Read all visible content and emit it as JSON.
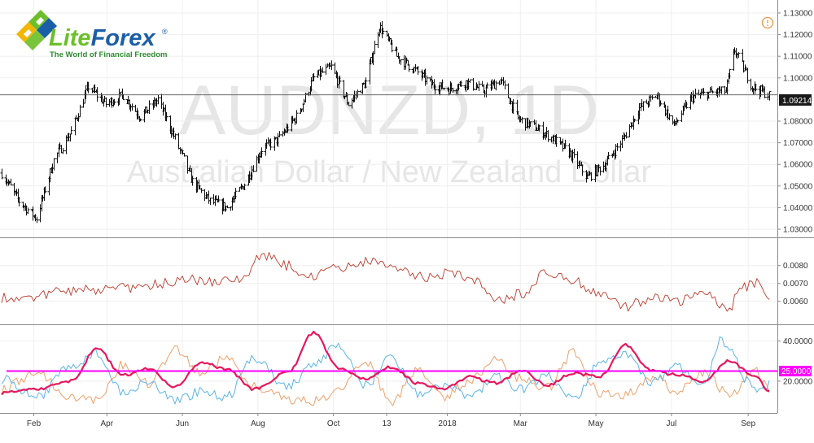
{
  "logo": {
    "word_a": "Lite",
    "word_b": "Forex",
    "registered": "®",
    "tagline": "The World of Financial Freedom",
    "colors": {
      "green": "#6cbf2a",
      "yellow": "#f2b705",
      "blue": "#1b5ea8",
      "tagline": "#2e8b32"
    }
  },
  "watermark": {
    "symbol": "AUDNZD, 1D",
    "description": "Australian Dollar / New Zealand Dollar"
  },
  "alert_icon": "exclamation-circle-icon",
  "chart_data": [
    {
      "type": "ohlc",
      "symbol": "AUDNZD",
      "timeframe": "1D",
      "ylim": [
        1.027,
        1.133
      ],
      "y_ticks": [
        "1.13000",
        "1.12000",
        "1.11000",
        "1.10000",
        "1.08000",
        "1.07000",
        "1.06000",
        "1.05000",
        "1.04000",
        "1.03000"
      ],
      "last_price": "1.09214",
      "x_ticks": [
        "Feb",
        "Apr",
        "Jun",
        "Aug",
        "Oct",
        "13",
        "2018",
        "Mar",
        "May",
        "Jul",
        "Sep"
      ],
      "close_path": [
        [
          "2017-01-06",
          1.056
        ],
        [
          "2017-01-20",
          1.043
        ],
        [
          "2017-02-03",
          1.035
        ],
        [
          "2017-02-17",
          1.062
        ],
        [
          "2017-03-03",
          1.075
        ],
        [
          "2017-03-17",
          1.096
        ],
        [
          "2017-03-31",
          1.088
        ],
        [
          "2017-04-14",
          1.092
        ],
        [
          "2017-04-28",
          1.082
        ],
        [
          "2017-05-12",
          1.09
        ],
        [
          "2017-05-26",
          1.072
        ],
        [
          "2017-06-09",
          1.052
        ],
        [
          "2017-06-23",
          1.043
        ],
        [
          "2017-07-07",
          1.04
        ],
        [
          "2017-07-21",
          1.051
        ],
        [
          "2017-08-04",
          1.067
        ],
        [
          "2017-08-18",
          1.072
        ],
        [
          "2017-09-01",
          1.082
        ],
        [
          "2017-09-15",
          1.1
        ],
        [
          "2017-09-29",
          1.105
        ],
        [
          "2017-10-13",
          1.088
        ],
        [
          "2017-10-27",
          1.098
        ],
        [
          "2017-11-07",
          1.124
        ],
        [
          "2017-11-21",
          1.11
        ],
        [
          "2017-12-05",
          1.104
        ],
        [
          "2017-12-19",
          1.097
        ],
        [
          "2018-01-02",
          1.095
        ],
        [
          "2018-01-16",
          1.098
        ],
        [
          "2018-01-30",
          1.094
        ],
        [
          "2018-02-13",
          1.099
        ],
        [
          "2018-02-27",
          1.081
        ],
        [
          "2018-03-13",
          1.077
        ],
        [
          "2018-03-27",
          1.072
        ],
        [
          "2018-04-10",
          1.065
        ],
        [
          "2018-04-24",
          1.054
        ],
        [
          "2018-05-08",
          1.06
        ],
        [
          "2018-05-22",
          1.071
        ],
        [
          "2018-06-05",
          1.086
        ],
        [
          "2018-06-19",
          1.092
        ],
        [
          "2018-07-03",
          1.078
        ],
        [
          "2018-07-17",
          1.091
        ],
        [
          "2018-07-31",
          1.093
        ],
        [
          "2018-08-14",
          1.094
        ],
        [
          "2018-08-21",
          1.113
        ],
        [
          "2018-09-04",
          1.096
        ],
        [
          "2018-09-18",
          1.092
        ]
      ]
    },
    {
      "type": "line",
      "name": "volatility",
      "ylim": [
        0.0048,
        0.0094
      ],
      "y_ticks": [
        "0.0080",
        "0.0070",
        "0.0060"
      ],
      "series": [
        {
          "color": "#c0392b",
          "points": [
            [
              "2017-01-06",
              0.0062
            ],
            [
              "2017-02-03",
              0.0063
            ],
            [
              "2017-03-03",
              0.0066
            ],
            [
              "2017-04-07",
              0.0067
            ],
            [
              "2017-05-05",
              0.0069
            ],
            [
              "2017-06-02",
              0.0072
            ],
            [
              "2017-06-30",
              0.0071
            ],
            [
              "2017-07-21",
              0.0073
            ],
            [
              "2017-08-04",
              0.0086
            ],
            [
              "2017-08-25",
              0.008
            ],
            [
              "2017-09-15",
              0.0073
            ],
            [
              "2017-09-29",
              0.0082
            ],
            [
              "2017-10-13",
              0.0079
            ],
            [
              "2017-11-03",
              0.0083
            ],
            [
              "2017-11-24",
              0.0079
            ],
            [
              "2017-12-15",
              0.0073
            ],
            [
              "2018-01-05",
              0.0076
            ],
            [
              "2018-01-26",
              0.0072
            ],
            [
              "2018-02-09",
              0.006
            ],
            [
              "2018-03-02",
              0.0064
            ],
            [
              "2018-03-23",
              0.0076
            ],
            [
              "2018-04-13",
              0.0071
            ],
            [
              "2018-05-04",
              0.0065
            ],
            [
              "2018-05-25",
              0.0057
            ],
            [
              "2018-06-15",
              0.0062
            ],
            [
              "2018-07-06",
              0.006
            ],
            [
              "2018-07-27",
              0.0065
            ],
            [
              "2018-08-17",
              0.0055
            ],
            [
              "2018-08-24",
              0.0067
            ],
            [
              "2018-09-07",
              0.007
            ],
            [
              "2018-09-18",
              0.0062
            ]
          ]
        }
      ]
    },
    {
      "type": "line",
      "name": "directional-movement",
      "ylim": [
        5,
        47
      ],
      "y_ticks": [
        "40.0000",
        "20.0000"
      ],
      "level": {
        "value": 25,
        "label": "25.0000",
        "color": "#ff00ff"
      },
      "series": [
        {
          "color": "#e8175d",
          "points": [
            [
              "2017-01-06",
              14
            ],
            [
              "2017-02-03",
              16
            ],
            [
              "2017-03-03",
              20
            ],
            [
              "2017-03-24",
              36
            ],
            [
              "2017-04-14",
              23
            ],
            [
              "2017-05-05",
              26
            ],
            [
              "2017-05-26",
              17
            ],
            [
              "2017-06-16",
              29
            ],
            [
              "2017-07-07",
              26
            ],
            [
              "2017-07-28",
              16
            ],
            [
              "2017-08-25",
              24
            ],
            [
              "2017-09-15",
              44
            ],
            [
              "2017-10-06",
              26
            ],
            [
              "2017-10-27",
              21
            ],
            [
              "2017-11-17",
              27
            ],
            [
              "2017-12-08",
              19
            ],
            [
              "2017-12-29",
              16
            ],
            [
              "2018-01-19",
              22
            ],
            [
              "2018-02-09",
              19
            ],
            [
              "2018-03-02",
              25
            ],
            [
              "2018-03-23",
              18
            ],
            [
              "2018-04-13",
              24
            ],
            [
              "2018-05-04",
              22
            ],
            [
              "2018-05-25",
              38
            ],
            [
              "2018-06-15",
              25
            ],
            [
              "2018-07-06",
              23
            ],
            [
              "2018-07-27",
              20
            ],
            [
              "2018-08-17",
              30
            ],
            [
              "2018-09-07",
              22
            ],
            [
              "2018-09-18",
              15
            ]
          ]
        },
        {
          "color": "#5ab4ec",
          "points": [
            [
              "2017-01-06",
              21
            ],
            [
              "2017-02-03",
              12
            ],
            [
              "2017-03-03",
              27
            ],
            [
              "2017-03-24",
              34
            ],
            [
              "2017-04-14",
              14
            ],
            [
              "2017-05-05",
              20
            ],
            [
              "2017-05-26",
              10
            ],
            [
              "2017-06-16",
              15
            ],
            [
              "2017-07-07",
              12
            ],
            [
              "2017-07-28",
              32
            ],
            [
              "2017-08-25",
              17
            ],
            [
              "2017-09-15",
              29
            ],
            [
              "2017-10-06",
              38
            ],
            [
              "2017-10-27",
              18
            ],
            [
              "2017-11-17",
              32
            ],
            [
              "2017-12-08",
              14
            ],
            [
              "2017-12-29",
              18
            ],
            [
              "2018-01-19",
              12
            ],
            [
              "2018-02-09",
              22
            ],
            [
              "2018-03-02",
              16
            ],
            [
              "2018-03-23",
              22
            ],
            [
              "2018-04-13",
              12
            ],
            [
              "2018-05-04",
              28
            ],
            [
              "2018-05-25",
              33
            ],
            [
              "2018-06-15",
              19
            ],
            [
              "2018-07-06",
              27
            ],
            [
              "2018-07-27",
              18
            ],
            [
              "2018-08-10",
              40
            ],
            [
              "2018-09-07",
              16
            ],
            [
              "2018-09-18",
              18
            ]
          ]
        },
        {
          "color": "#f0a06a",
          "points": [
            [
              "2017-01-06",
              16
            ],
            [
              "2017-02-03",
              24
            ],
            [
              "2017-03-03",
              12
            ],
            [
              "2017-03-24",
              10
            ],
            [
              "2017-04-14",
              28
            ],
            [
              "2017-05-05",
              19
            ],
            [
              "2017-05-26",
              36
            ],
            [
              "2017-06-16",
              24
            ],
            [
              "2017-07-07",
              32
            ],
            [
              "2017-07-28",
              18
            ],
            [
              "2017-08-25",
              11
            ],
            [
              "2017-09-15",
              10
            ],
            [
              "2017-10-06",
              15
            ],
            [
              "2017-10-27",
              30
            ],
            [
              "2017-11-17",
              10
            ],
            [
              "2017-12-08",
              26
            ],
            [
              "2017-12-29",
              12
            ],
            [
              "2018-01-19",
              20
            ],
            [
              "2018-02-09",
              31
            ],
            [
              "2018-03-02",
              21
            ],
            [
              "2018-03-23",
              17
            ],
            [
              "2018-04-13",
              34
            ],
            [
              "2018-05-04",
              14
            ],
            [
              "2018-05-25",
              13
            ],
            [
              "2018-06-15",
              22
            ],
            [
              "2018-07-06",
              15
            ],
            [
              "2018-07-27",
              24
            ],
            [
              "2018-08-17",
              13
            ],
            [
              "2018-09-07",
              26
            ],
            [
              "2018-09-18",
              15
            ]
          ]
        }
      ]
    }
  ]
}
